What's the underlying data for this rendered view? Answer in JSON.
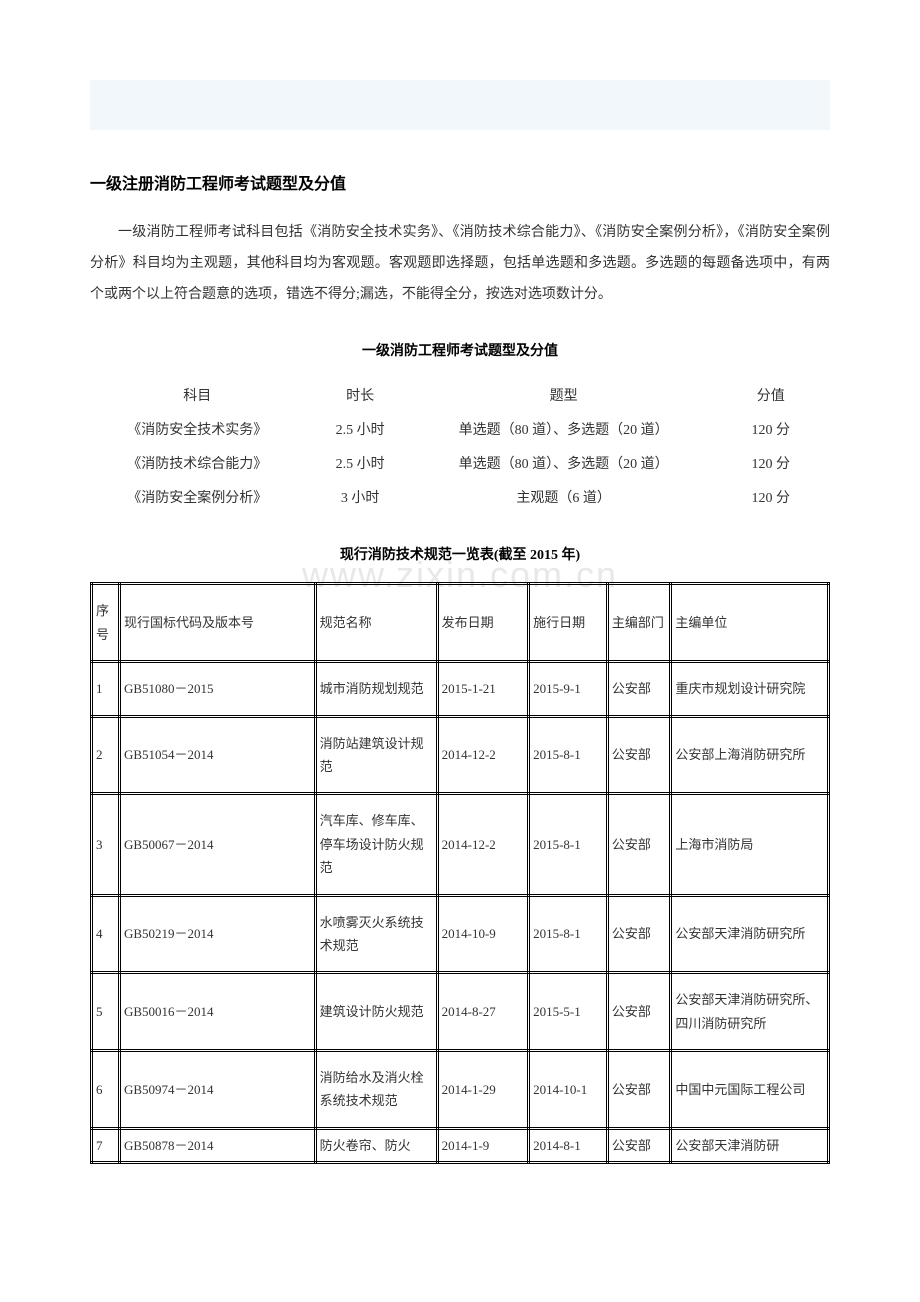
{
  "top_band_color": "#f2f7fc",
  "title": "一级注册消防工程师考试题型及分值",
  "intro": "一级消防工程师考试科目包括《消防安全技术实务》、《消防技术综合能力》、《消防安全案例分析》，《消防安全案例分析》科目均为主观题，其他科目均为客观题。客观题即选择题，包括单选题和多选题。多选题的每题备选项中，有两个或两个以上符合题意的选项，错选不得分;漏选，不能得全分，按选对选项数计分。",
  "exam_title": "一级消防工程师考试题型及分值",
  "exam_table": {
    "headers": [
      "科目",
      "时长",
      "题型",
      "分值"
    ],
    "rows": [
      [
        "《消防安全技术实务》",
        "2.5 小时",
        "单选题（80 道）、多选题（20 道）",
        "120 分"
      ],
      [
        "《消防技术综合能力》",
        "2.5 小时",
        "单选题（80 道）、多选题（20 道）",
        "120 分"
      ],
      [
        "《消防安全案例分析》",
        "3 小时",
        "主观题（6 道）",
        "120 分"
      ]
    ]
  },
  "regs_title": "现行消防技术规范一览表(截至 2015 年)",
  "watermark": "www.zixin.com.cn",
  "regs_table": {
    "headers": [
      "序号",
      "现行国标代码及版本号",
      "规范名称",
      "发布日期",
      "施行日期",
      "主编部门",
      "主编单位"
    ],
    "rows": [
      [
        "1",
        "GB51080－2015",
        "城市消防规划规范",
        "2015-1-21",
        "2015-9-1",
        "公安部",
        "重庆市规划设计研究院"
      ],
      [
        "2",
        "GB51054－2014",
        "消防站建筑设计规范",
        "2014-12-2",
        "2015-8-1",
        "公安部",
        "公安部上海消防研究所"
      ],
      [
        "3",
        "GB50067－2014",
        "汽车库、修车库、停车场设计防火规范",
        "2014-12-2",
        "2015-8-1",
        "公安部",
        "上海市消防局"
      ],
      [
        "4",
        "GB50219－2014",
        "水喷雾灭火系统技术规范",
        "2014-10-9",
        "2015-8-1",
        "公安部",
        "公安部天津消防研究所"
      ],
      [
        "5",
        "GB50016－2014",
        "建筑设计防火规范",
        "2014-8-27",
        "2015-5-1",
        "公安部",
        "公安部天津消防研究所、四川消防研究所"
      ],
      [
        "6",
        "GB50974－2014",
        "消防给水及消火栓系统技术规范",
        "2014-1-29",
        "2014-10-1",
        "公安部",
        "中国中元国际工程公司"
      ],
      [
        "7",
        "GB50878－2014",
        "防火卷帘、防火",
        "2014-1-9",
        "2014-8-1",
        "公安部",
        "公安部天津消防研"
      ]
    ]
  }
}
